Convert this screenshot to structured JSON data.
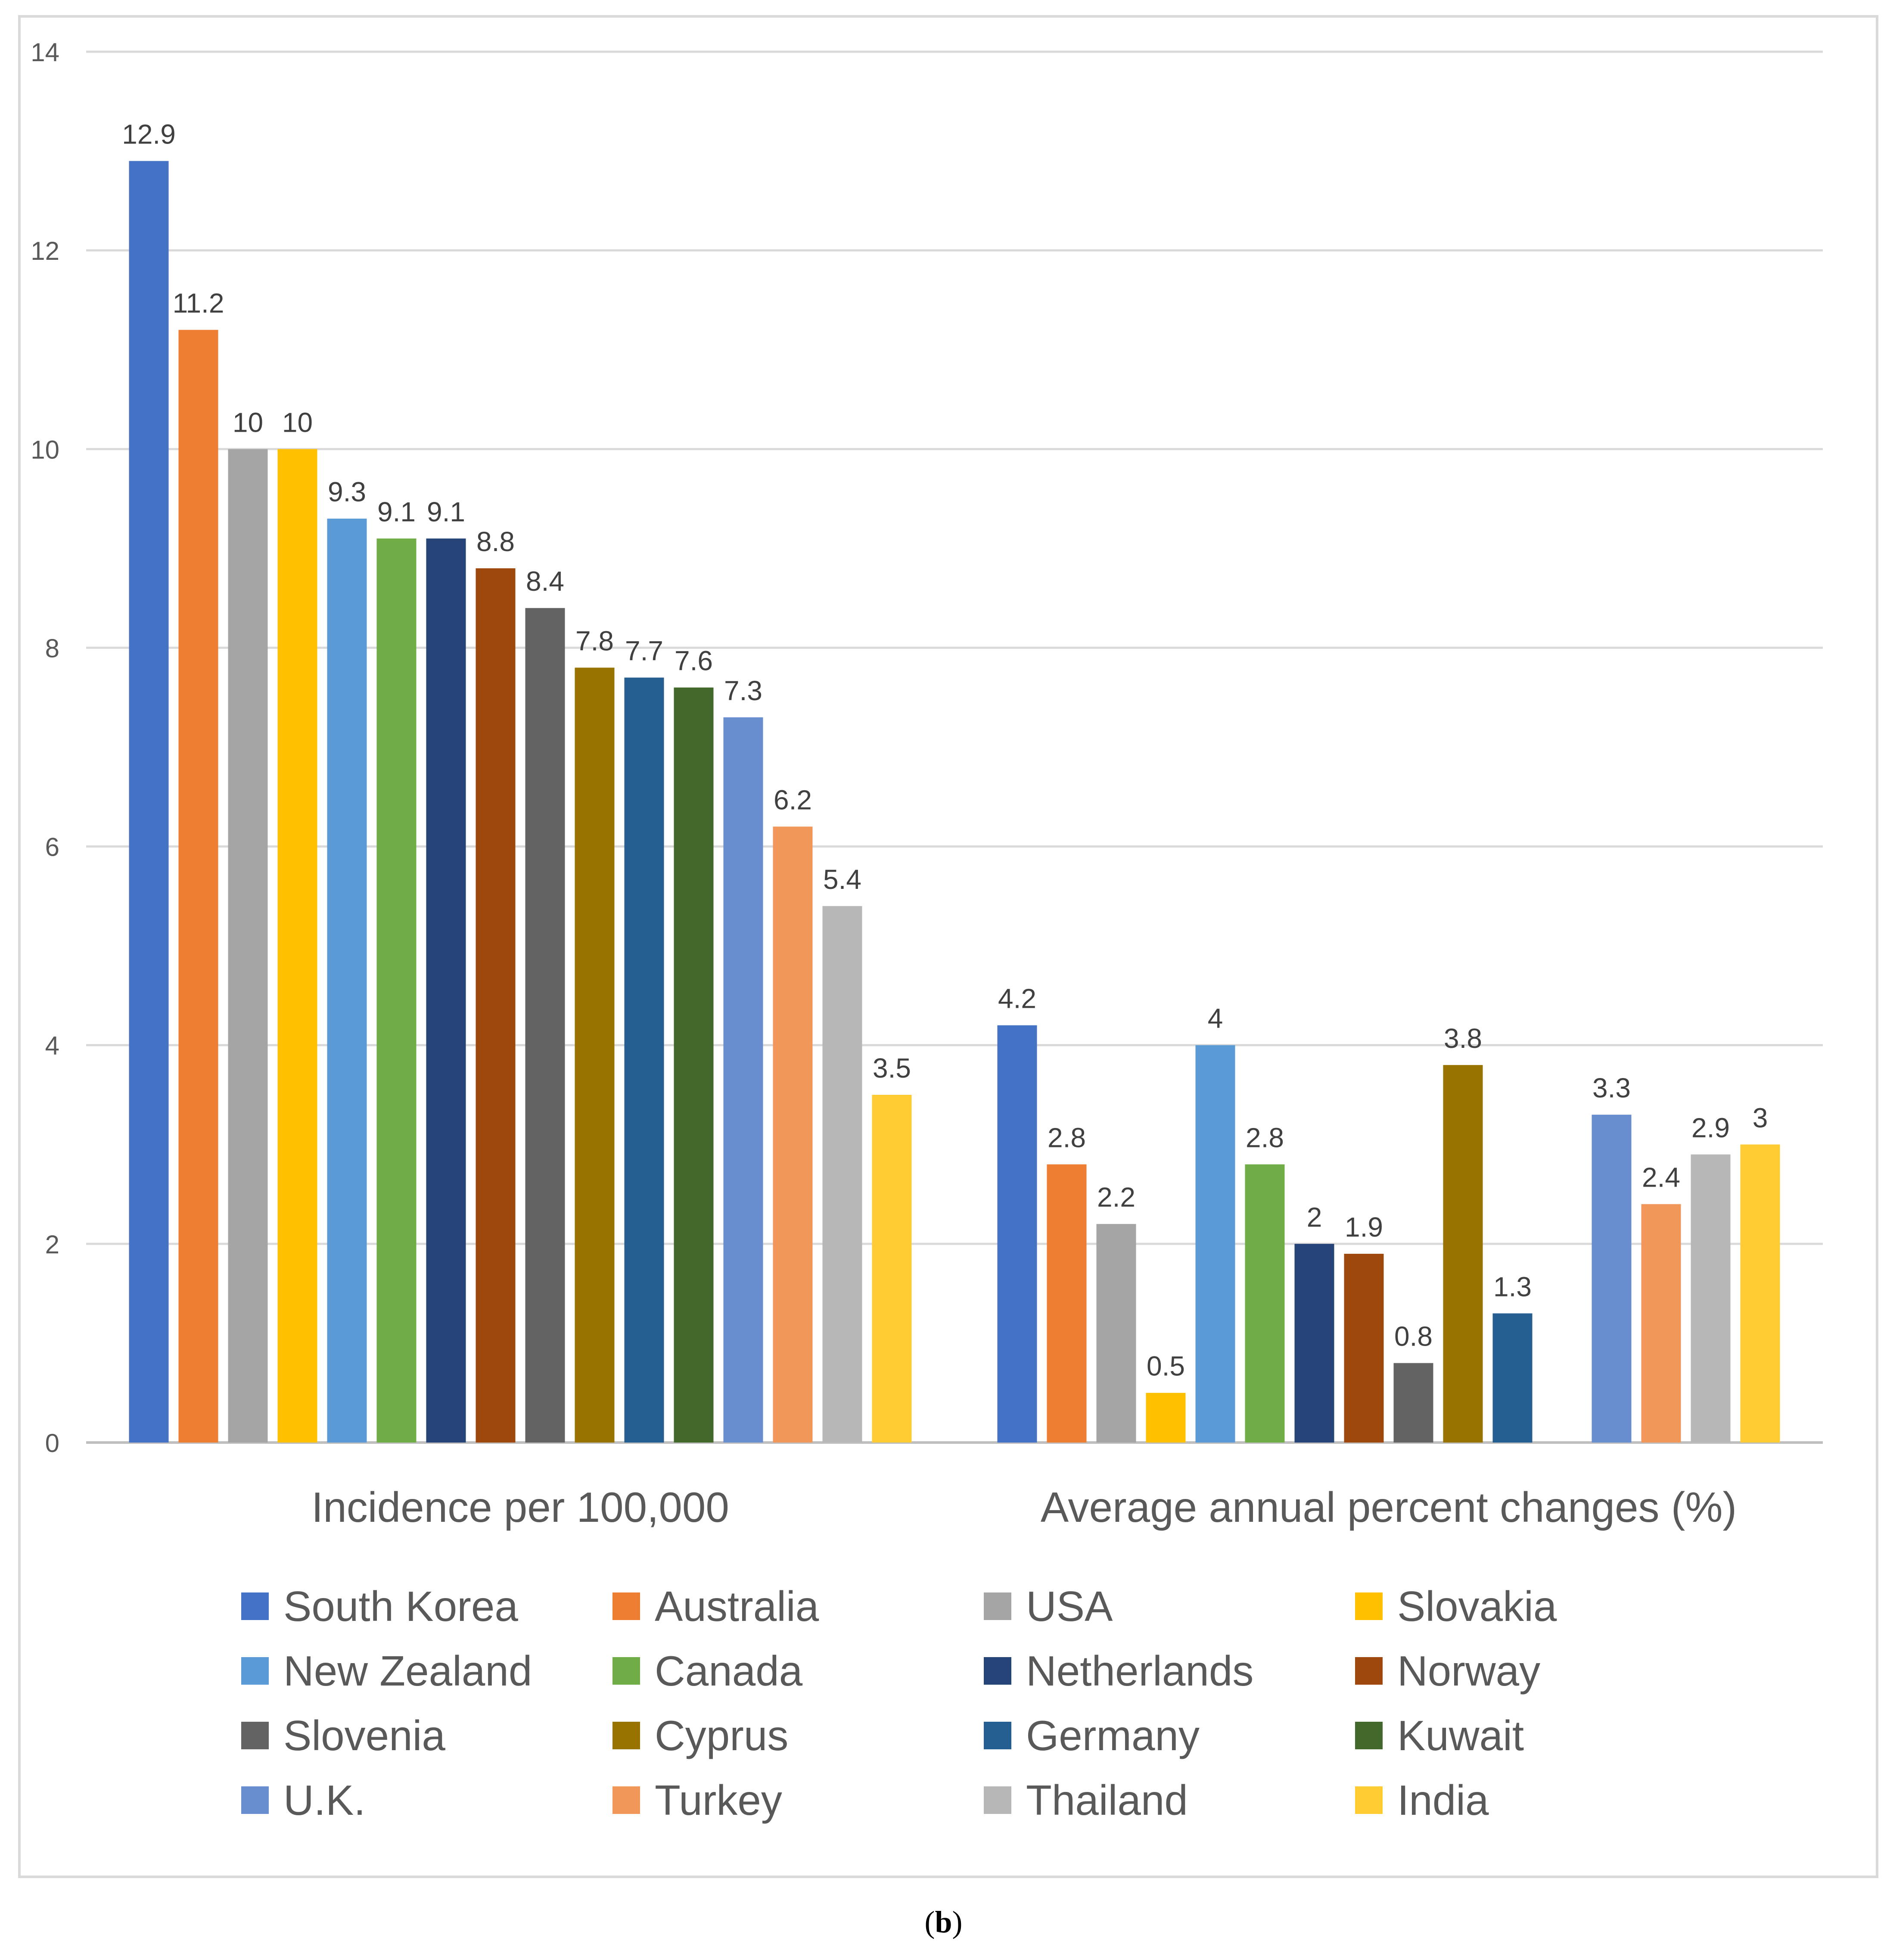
{
  "caption": {
    "open": "(",
    "label": "b",
    "close": ")"
  },
  "colors": {
    "South Korea": "#4472C4",
    "Australia": "#ED7D31",
    "USA": "#A5A5A5",
    "Slovakia": "#FFC000",
    "New Zealand": "#5B9BD5",
    "Canada": "#70AD47",
    "Netherlands": "#264478",
    "Norway": "#9E480E",
    "Slovenia": "#636363",
    "Cyprus": "#997300",
    "Germany": "#255E91",
    "Kuwait": "#43682B",
    "U.K.": "#698ED0",
    "Turkey": "#F1975A",
    "Thailand": "#B7B7B7",
    "India": "#FFCD33"
  },
  "chart_data": {
    "type": "bar",
    "title": "",
    "xlabel": "",
    "ylabel": "",
    "ylim": [
      0,
      14
    ],
    "yticks": [
      "0",
      "2",
      "4",
      "6",
      "8",
      "10",
      "12",
      "14"
    ],
    "grid": true,
    "legend_position": "bottom",
    "categories": [
      "Incidence per 100,000",
      "Average annual percent changes (%)"
    ],
    "series": [
      {
        "name": "South Korea",
        "values": [
          12.9,
          4.2
        ],
        "labels": [
          "12.9",
          "4.2"
        ]
      },
      {
        "name": "Australia",
        "values": [
          11.2,
          2.8
        ],
        "labels": [
          "11.2",
          "2.8"
        ]
      },
      {
        "name": "USA",
        "values": [
          10,
          2.2
        ],
        "labels": [
          "10",
          "2.2"
        ]
      },
      {
        "name": "Slovakia",
        "values": [
          10,
          0.5
        ],
        "labels": [
          "10",
          "0.5"
        ]
      },
      {
        "name": "New Zealand",
        "values": [
          9.3,
          4
        ],
        "labels": [
          "9.3",
          "4"
        ]
      },
      {
        "name": "Canada",
        "values": [
          9.1,
          2.8
        ],
        "labels": [
          "9.1",
          "2.8"
        ]
      },
      {
        "name": "Netherlands",
        "values": [
          9.1,
          2
        ],
        "labels": [
          "9.1",
          "2"
        ]
      },
      {
        "name": "Norway",
        "values": [
          8.8,
          1.9
        ],
        "labels": [
          "8.8",
          "1.9"
        ]
      },
      {
        "name": "Slovenia",
        "values": [
          8.4,
          0.8
        ],
        "labels": [
          "8.4",
          "0.8"
        ]
      },
      {
        "name": "Cyprus",
        "values": [
          7.8,
          3.8
        ],
        "labels": [
          "7.8",
          "3.8"
        ]
      },
      {
        "name": "Germany",
        "values": [
          7.7,
          1.3
        ],
        "labels": [
          "7.7",
          "1.3"
        ]
      },
      {
        "name": "Kuwait",
        "values": [
          7.6,
          null
        ],
        "labels": [
          "7.6",
          null
        ]
      },
      {
        "name": "U.K.",
        "values": [
          7.3,
          3.3
        ],
        "labels": [
          "7.3",
          "3.3"
        ]
      },
      {
        "name": "Turkey",
        "values": [
          6.2,
          2.4
        ],
        "labels": [
          "6.2",
          "2.4"
        ]
      },
      {
        "name": "Thailand",
        "values": [
          5.4,
          2.9
        ],
        "labels": [
          "5.4",
          "2.9"
        ]
      },
      {
        "name": "India",
        "values": [
          3.5,
          3
        ],
        "labels": [
          "3.5",
          "3"
        ]
      }
    ]
  }
}
